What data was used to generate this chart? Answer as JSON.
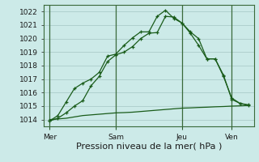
{
  "bg_color": "#cceae8",
  "grid_color": "#b0d0ce",
  "line_color": "#1a5c1a",
  "xlabel": "Pression niveau de la mer( hPa )",
  "ylim": [
    1013.5,
    1022.5
  ],
  "yticks": [
    1014,
    1015,
    1016,
    1017,
    1018,
    1019,
    1020,
    1021,
    1022
  ],
  "day_labels": [
    "Mer",
    "Sam",
    "Jeu",
    "Ven"
  ],
  "day_positions": [
    0,
    48,
    96,
    132
  ],
  "total_hours": 144,
  "line1_x": [
    0,
    6,
    12,
    18,
    24,
    30,
    36,
    42,
    48,
    54,
    60,
    66,
    72,
    78,
    84,
    90,
    96,
    102,
    108,
    114,
    120,
    126,
    132,
    138,
    144
  ],
  "line1_y": [
    1013.9,
    1014.1,
    1014.5,
    1015.0,
    1015.4,
    1016.5,
    1017.2,
    1018.3,
    1018.8,
    1019.0,
    1019.4,
    1020.0,
    1020.4,
    1020.45,
    1021.65,
    1021.6,
    1021.15,
    1020.4,
    1019.5,
    1018.5,
    1018.5,
    1017.2,
    1015.6,
    1015.2,
    1015.1
  ],
  "line2_x": [
    0,
    6,
    12,
    18,
    24,
    30,
    36,
    42,
    48,
    54,
    60,
    66,
    72,
    78,
    84,
    90,
    96,
    102,
    108,
    114,
    120,
    126,
    132,
    138,
    144
  ],
  "line2_y": [
    1013.9,
    1014.3,
    1015.3,
    1016.3,
    1016.7,
    1017.0,
    1017.5,
    1018.7,
    1018.85,
    1019.5,
    1020.05,
    1020.5,
    1020.5,
    1021.65,
    1022.1,
    1021.5,
    1021.15,
    1020.5,
    1020.0,
    1018.5,
    1018.5,
    1017.3,
    1015.5,
    1015.2,
    1015.05
  ],
  "line3_x": [
    0,
    6,
    12,
    18,
    24,
    30,
    36,
    42,
    48,
    54,
    60,
    66,
    72,
    78,
    84,
    90,
    96,
    102,
    108,
    114,
    120,
    126,
    132,
    138,
    144
  ],
  "line3_y": [
    1014.0,
    1014.05,
    1014.1,
    1014.2,
    1014.3,
    1014.35,
    1014.4,
    1014.45,
    1014.5,
    1014.52,
    1014.55,
    1014.6,
    1014.65,
    1014.7,
    1014.75,
    1014.8,
    1014.85,
    1014.87,
    1014.9,
    1014.92,
    1014.95,
    1014.97,
    1015.0,
    1015.02,
    1015.05
  ],
  "xlabel_fontsize": 8,
  "tick_fontsize": 6.5
}
